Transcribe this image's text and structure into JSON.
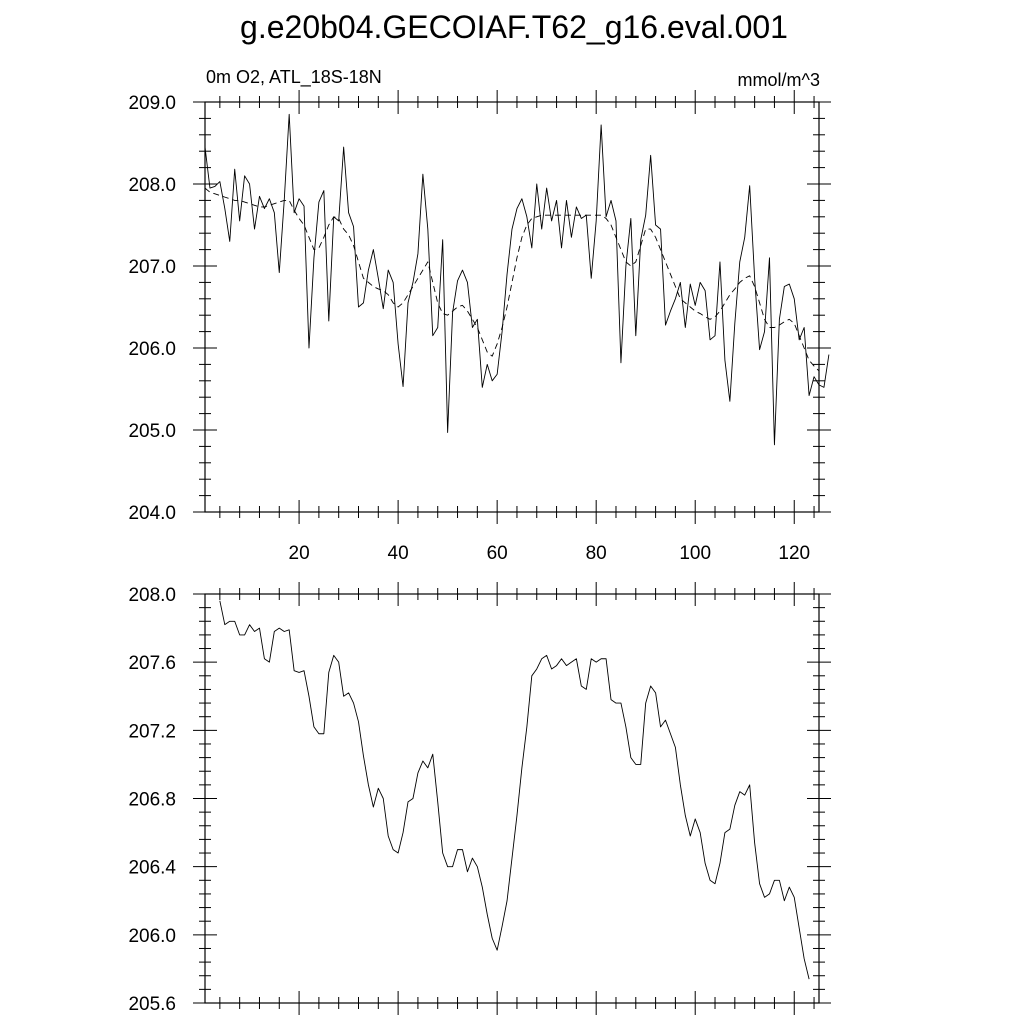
{
  "chart_data": [
    {
      "type": "line",
      "title": "g.e20b04.GECOIAF.T62_g16.eval.001",
      "subtitle_left": "0m O2, ATL_18S-18N",
      "subtitle_right": "mmol/m^3",
      "xlim": [
        1,
        125
      ],
      "ylim": [
        204.0,
        209.0
      ],
      "x_ticks": [
        20,
        40,
        60,
        80,
        100,
        120
      ],
      "y_ticks": [
        "204.0",
        "205.0",
        "206.0",
        "207.0",
        "208.0",
        "209.0"
      ],
      "series": [
        {
          "style": "solid",
          "values": [
            208.45,
            207.95,
            207.97,
            208.03,
            207.7,
            207.3,
            208.18,
            207.55,
            208.1,
            208.0,
            207.45,
            207.85,
            207.7,
            207.82,
            207.65,
            206.92,
            207.8,
            208.85,
            207.65,
            207.82,
            207.73,
            206.0,
            207.1,
            207.78,
            207.92,
            206.33,
            207.6,
            207.55,
            208.45,
            207.65,
            207.48,
            206.5,
            206.55,
            206.95,
            207.2,
            206.85,
            206.48,
            206.95,
            206.8,
            206.05,
            205.53,
            206.55,
            206.8,
            207.15,
            208.12,
            207.45,
            206.15,
            206.25,
            207.32,
            204.97,
            206.43,
            206.82,
            206.95,
            206.8,
            206.25,
            206.35,
            205.52,
            205.8,
            205.6,
            205.68,
            206.2,
            206.9,
            207.45,
            207.7,
            207.82,
            207.6,
            207.22,
            208.0,
            207.45,
            207.95,
            207.55,
            207.8,
            207.22,
            207.8,
            207.35,
            207.72,
            207.58,
            207.62,
            206.85,
            207.55,
            208.72,
            207.6,
            207.8,
            207.55,
            205.82,
            207.0,
            207.58,
            206.15,
            207.32,
            207.62,
            208.35,
            207.5,
            207.45,
            206.28,
            206.45,
            206.6,
            206.8,
            206.25,
            206.78,
            206.52,
            206.8,
            206.7,
            206.1,
            206.15,
            207.05,
            205.85,
            205.35,
            206.3,
            207.05,
            207.35,
            207.98,
            206.85,
            205.98,
            206.2,
            207.1,
            204.82,
            206.35,
            206.75,
            206.78,
            206.6,
            206.1,
            206.25,
            205.42,
            205.65,
            205.55,
            205.52,
            205.92
          ]
        },
        {
          "style": "dashed",
          "values": [
            207.95,
            207.9,
            207.88,
            207.86,
            207.84,
            207.82,
            207.8,
            207.8,
            207.78,
            207.76,
            207.74,
            207.72,
            207.72,
            207.74,
            207.76,
            207.78,
            207.8,
            207.8,
            207.68,
            207.58,
            207.5,
            207.35,
            207.2,
            207.22,
            207.35,
            207.5,
            207.6,
            207.58,
            207.45,
            207.38,
            207.25,
            207.05,
            206.85,
            206.8,
            206.75,
            206.72,
            206.7,
            206.65,
            206.55,
            206.5,
            206.55,
            206.65,
            206.75,
            206.85,
            206.95,
            207.05,
            206.8,
            206.55,
            206.42,
            206.4,
            206.45,
            206.5,
            206.52,
            206.45,
            206.35,
            206.25,
            206.1,
            205.95,
            205.9,
            206.05,
            206.25,
            206.5,
            206.8,
            207.1,
            207.35,
            207.5,
            207.58,
            207.6,
            207.62,
            207.62,
            207.62,
            207.62,
            207.62,
            207.62,
            207.62,
            207.62,
            207.62,
            207.62,
            207.62,
            207.62,
            207.62,
            207.58,
            207.5,
            207.35,
            207.2,
            207.05,
            207.0,
            207.05,
            207.25,
            207.45,
            207.45,
            207.35,
            207.2,
            207.05,
            206.9,
            206.75,
            206.6,
            206.55,
            206.5,
            206.45,
            206.42,
            206.38,
            206.35,
            206.38,
            206.45,
            206.55,
            206.65,
            206.72,
            206.8,
            206.85,
            206.88,
            206.75,
            206.55,
            206.35,
            206.25,
            206.25,
            206.28,
            206.32,
            206.35,
            206.3,
            206.15,
            206.0,
            205.85,
            205.78,
            205.72
          ]
        }
      ]
    },
    {
      "type": "line",
      "xlim": [
        1,
        125
      ],
      "ylim": [
        205.6,
        208.0
      ],
      "y_ticks": [
        "205.6",
        "206.0",
        "206.4",
        "206.8",
        "207.2",
        "207.6",
        "208.0"
      ],
      "series": [
        {
          "style": "solid",
          "x_start": 4,
          "values": [
            207.96,
            207.82,
            207.84,
            207.84,
            207.76,
            207.76,
            207.82,
            207.78,
            207.8,
            207.62,
            207.6,
            207.78,
            207.8,
            207.78,
            207.79,
            207.55,
            207.54,
            207.55,
            207.4,
            207.22,
            207.18,
            207.18,
            207.54,
            207.64,
            207.6,
            207.4,
            207.42,
            207.36,
            207.25,
            207.05,
            206.88,
            206.75,
            206.86,
            206.8,
            206.58,
            206.5,
            206.48,
            206.6,
            206.78,
            206.8,
            206.95,
            207.02,
            206.98,
            207.06,
            206.78,
            206.48,
            206.4,
            206.4,
            206.5,
            206.5,
            206.37,
            206.45,
            206.4,
            206.28,
            206.12,
            205.98,
            205.91,
            206.05,
            206.2,
            206.45,
            206.7,
            206.98,
            207.22,
            207.52,
            207.56,
            207.62,
            207.64,
            207.56,
            207.58,
            207.62,
            207.58,
            207.6,
            207.62,
            207.46,
            207.44,
            207.62,
            207.6,
            207.62,
            207.62,
            207.38,
            207.36,
            207.36,
            207.22,
            207.04,
            207.0,
            207.0,
            207.36,
            207.46,
            207.42,
            207.22,
            207.26,
            207.18,
            207.1,
            206.88,
            206.7,
            206.58,
            206.68,
            206.6,
            206.42,
            206.32,
            206.3,
            206.42,
            206.6,
            206.62,
            206.76,
            206.84,
            206.82,
            206.88,
            206.54,
            206.3,
            206.22,
            206.24,
            206.32,
            206.32,
            206.2,
            206.28,
            206.22,
            206.04,
            205.86,
            205.74
          ]
        }
      ]
    }
  ]
}
